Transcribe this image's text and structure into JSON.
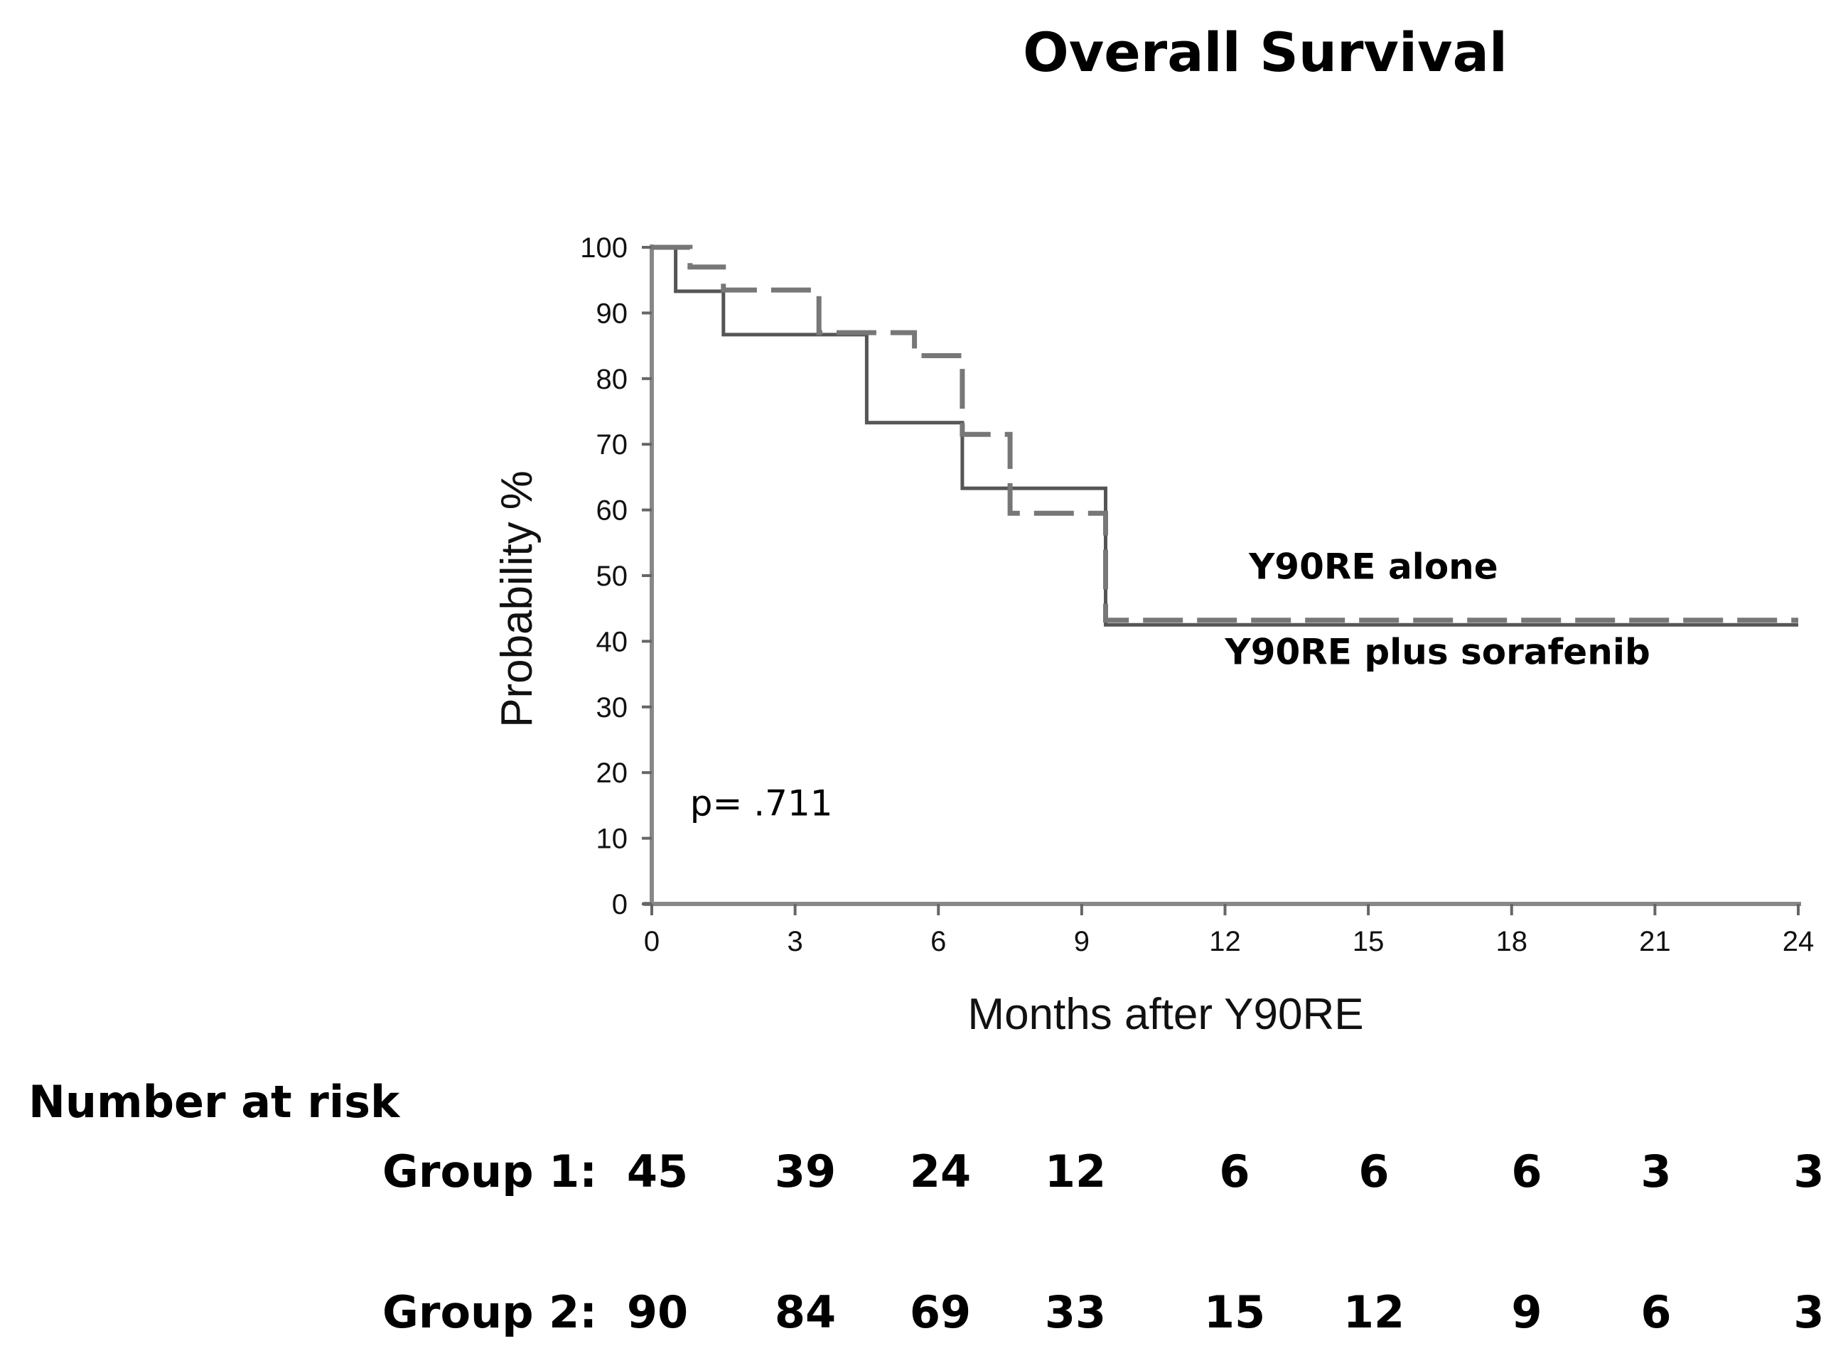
{
  "chart_data": {
    "type": "line",
    "title": "Overall Survival",
    "xlabel": "Months after Y90RE",
    "ylabel": "Probability %",
    "xlim": [
      0,
      24
    ],
    "ylim": [
      0,
      100
    ],
    "x_ticks": [
      "0",
      "3",
      "6",
      "9",
      "12",
      "15",
      "18",
      "21",
      "24"
    ],
    "y_ticks": [
      "0",
      "10",
      "20",
      "30",
      "40",
      "50",
      "60",
      "70",
      "80",
      "90",
      "100"
    ],
    "grid": false,
    "series": [
      {
        "name": "Y90RE plus sorafenib",
        "style": "solid",
        "color": "#555555",
        "x": [
          0,
          0.5,
          0.5,
          1.5,
          1.5,
          4.5,
          4.5,
          6.5,
          6.5,
          9.5,
          9.5,
          24
        ],
        "y": [
          100,
          100,
          93.3,
          93.3,
          86.7,
          86.7,
          73.3,
          73.3,
          63.3,
          63.3,
          42.5,
          42.5
        ]
      },
      {
        "name": "Y90RE alone",
        "style": "dashed",
        "color": "#777777",
        "x": [
          0,
          0.8,
          0.8,
          1.5,
          1.5,
          3.5,
          3.5,
          5.5,
          5.5,
          6.5,
          6.5,
          7.5,
          7.5,
          9.5,
          9.5,
          24
        ],
        "y": [
          100,
          100,
          97,
          97,
          93.5,
          93.5,
          87,
          87,
          83.5,
          83.5,
          71.5,
          71.5,
          59.5,
          59.5,
          43.2,
          43.2
        ]
      }
    ],
    "annotations": [
      {
        "text": "Y90RE alone",
        "x": 12.5,
        "y": 49.5
      },
      {
        "text": "Y90RE plus sorafenib",
        "x": 12.0,
        "y": 36.5
      },
      {
        "text": "p= .711",
        "x": 0.8,
        "y": 13.5
      }
    ],
    "risk_table": {
      "title": "Number at risk",
      "rows": [
        {
          "label": "Group 1:",
          "values": [
            "45",
            "39",
            "24",
            "12",
            "6",
            "6",
            "6",
            "3",
            "3"
          ]
        },
        {
          "label": "Group 2:",
          "values": [
            "90",
            "84",
            "69",
            "33",
            "15",
            "12",
            "9",
            "6",
            "3"
          ]
        }
      ]
    }
  }
}
